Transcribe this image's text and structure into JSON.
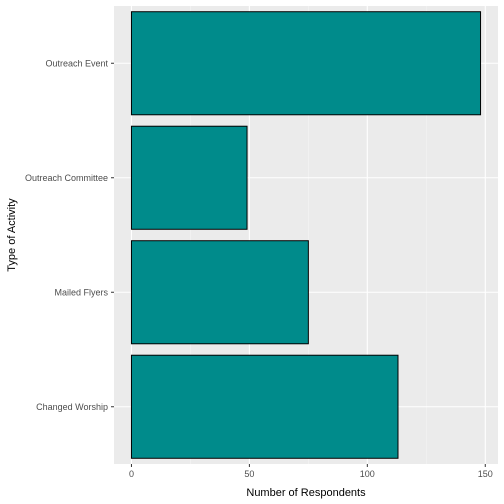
{
  "chart_data": {
    "type": "bar",
    "orientation": "horizontal",
    "title": "",
    "xlabel": "Number of Respondents",
    "ylabel": "Type of Activity",
    "categories": [
      "Changed Worship",
      "Mailed Flyers",
      "Outreach Committee",
      "Outreach Event"
    ],
    "values": [
      113,
      75,
      49,
      148
    ],
    "xlim": [
      -7.4,
      155.4
    ],
    "x_ticks": [
      0,
      50,
      100,
      150
    ],
    "grid": true,
    "legend": "none",
    "colors": {
      "bar_fill": "#008B8B",
      "bar_stroke": "#000000",
      "panel_background": "#EBEBEB",
      "grid_major": "#FFFFFF",
      "grid_minor": "#F5F5F5"
    }
  }
}
